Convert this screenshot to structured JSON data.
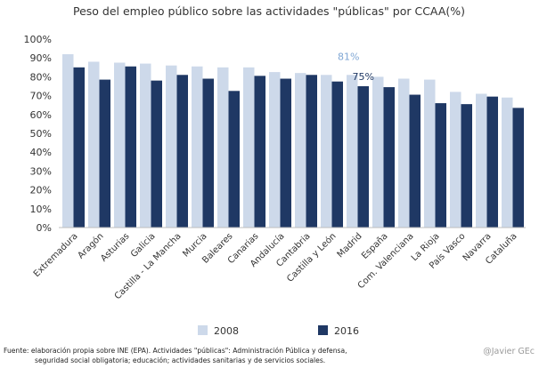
{
  "chart_data": {
    "type": "bar",
    "title": "Peso del empleo público sobre las actividades \"públicas\" por CCAA(%)",
    "xlabel": "",
    "ylabel": "",
    "ylim": [
      0,
      100
    ],
    "yticks": [
      "0%",
      "10%",
      "20%",
      "30%",
      "40%",
      "50%",
      "60%",
      "70%",
      "80%",
      "90%",
      "100%"
    ],
    "categories": [
      "Extremadura",
      "Aragón",
      "Asturias",
      "Galicia",
      "Castilla - La Mancha",
      "Murcia",
      "Baleares",
      "Canarias",
      "Andalucía",
      "Cantabria",
      "Castilla y León",
      "Madrid",
      "España",
      "Com. Valenciana",
      "La Rioja",
      "País Vasco",
      "Navarra",
      "Cataluña"
    ],
    "series": [
      {
        "name": "2008",
        "color": "#cdd9ea",
        "values": [
          92,
          88,
          87.5,
          87,
          86,
          85.5,
          85,
          85,
          82.5,
          82,
          81,
          81,
          80,
          79,
          78.5,
          72,
          71,
          69
        ]
      },
      {
        "name": "2016",
        "color": "#1f3864",
        "values": [
          85,
          78.5,
          85.5,
          78,
          81,
          79,
          72.5,
          80.5,
          79,
          81,
          77.5,
          75,
          74.5,
          70.5,
          66,
          65.5,
          69.5,
          63.5
        ]
      }
    ],
    "annotations": [
      {
        "text": "81%",
        "category": "Madrid",
        "series": "2008",
        "value": 81,
        "color": "#7fa6d4"
      },
      {
        "text": "75%",
        "category": "Madrid",
        "series": "2016",
        "value": 75,
        "color": "#1f3864"
      }
    ],
    "legend_position": "bottom",
    "grid": false
  },
  "footnote": {
    "line1": "Fuente: elaboración propia sobre INE (EPA). Actividades \"públicas\": Administración Pública y defensa,",
    "line2": "seguridad social obligatoria; educación; actividades sanitarias y de servicios sociales."
  },
  "credit": "@Javier GEc"
}
